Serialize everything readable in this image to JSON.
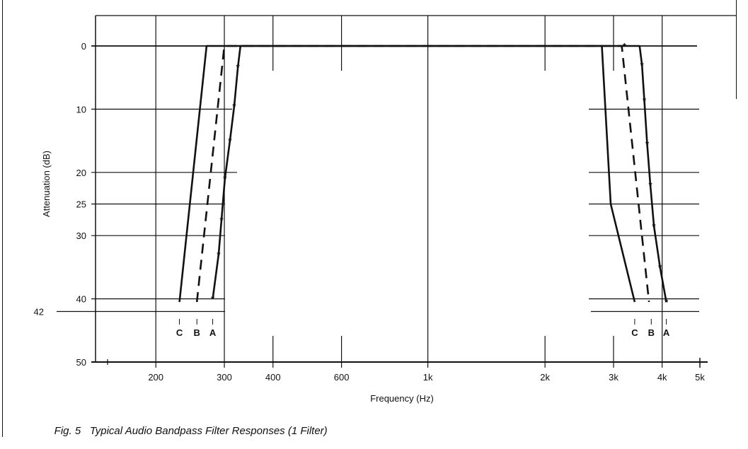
{
  "chart_data": {
    "type": "line",
    "title": "",
    "xlabel": "Frequency (Hz)",
    "ylabel": "Attenuation (dB)",
    "x_scale": "log",
    "xlim": [
      140,
      5000
    ],
    "ylim": [
      0,
      50
    ],
    "y_inverted": true,
    "x_ticks": [
      {
        "value": 200,
        "label": "200"
      },
      {
        "value": 300,
        "label": "300"
      },
      {
        "value": 400,
        "label": "400"
      },
      {
        "value": 600,
        "label": "600"
      },
      {
        "value": 1000,
        "label": "1k"
      },
      {
        "value": 2000,
        "label": "2k"
      },
      {
        "value": 3000,
        "label": "3k"
      },
      {
        "value": 4000,
        "label": "4k"
      },
      {
        "value": 5000,
        "label": "5k"
      }
    ],
    "y_ticks": [
      {
        "value": 0,
        "label": "0"
      },
      {
        "value": 10,
        "label": "10"
      },
      {
        "value": 20,
        "label": "20"
      },
      {
        "value": 25,
        "label": "25"
      },
      {
        "value": 30,
        "label": "30"
      },
      {
        "value": 40,
        "label": "40"
      },
      {
        "value": 42,
        "label": "42"
      },
      {
        "value": 50,
        "label": "50"
      }
    ],
    "grid": true,
    "series": [
      {
        "name": "A",
        "style": "solid-asterisk",
        "low_edge": [
          [
            280,
            40
          ],
          [
            290,
            33
          ],
          [
            295,
            27.5
          ],
          [
            301,
            21
          ],
          [
            310,
            15
          ],
          [
            318,
            9.5
          ],
          [
            325,
            3.3
          ],
          [
            330,
            0
          ]
        ],
        "pass": [
          [
            330,
            0
          ],
          [
            3500,
            0
          ]
        ],
        "high_edge": [
          [
            3500,
            0
          ],
          [
            3550,
            3
          ],
          [
            3600,
            8.6
          ],
          [
            3660,
            15.5
          ],
          [
            3730,
            22
          ],
          [
            3810,
            28.5
          ],
          [
            3950,
            35
          ],
          [
            4100,
            40.5
          ]
        ],
        "marker_label": "A",
        "marker_freq": 4100
      },
      {
        "name": "B",
        "style": "dashed",
        "low_edge": [
          [
            255,
            40.5
          ],
          [
            300,
            0
          ]
        ],
        "pass": [
          [
            300,
            0
          ],
          [
            3150,
            0
          ]
        ],
        "high_edge": [
          [
            3150,
            0
          ],
          [
            3700,
            40.5
          ]
        ],
        "marker_label": "B",
        "marker_freq": 3750
      },
      {
        "name": "C",
        "style": "solid",
        "low_edge": [
          [
            230,
            40.5
          ],
          [
            270,
            0
          ]
        ],
        "pass": [
          [
            270,
            0
          ],
          [
            2800,
            0
          ]
        ],
        "high_edge": [
          [
            2800,
            0
          ],
          [
            2950,
            25
          ],
          [
            3400,
            40.5
          ]
        ],
        "marker_label": "C",
        "marker_freq": 3400
      }
    ],
    "low_markers": [
      {
        "label": "C",
        "freq": 230
      },
      {
        "label": "B",
        "freq": 255
      },
      {
        "label": "A",
        "freq": 280
      }
    ]
  },
  "caption": {
    "figure": "Fig. 5",
    "text": "Typical Audio Bandpass Filter Responses (1 Filter)"
  }
}
